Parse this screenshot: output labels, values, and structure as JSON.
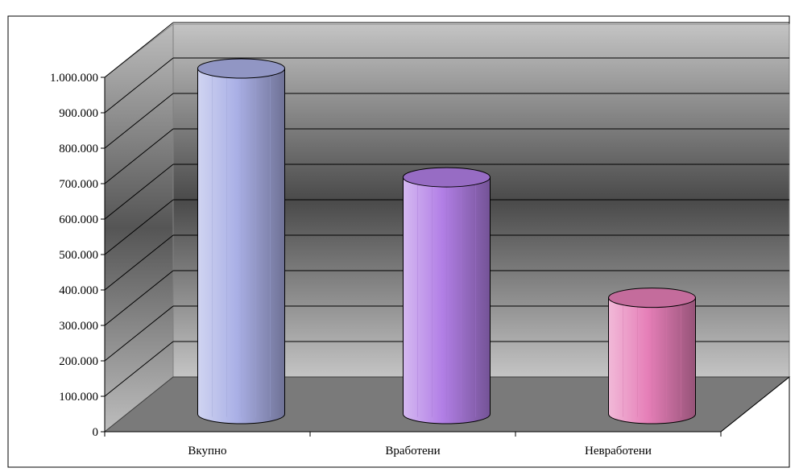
{
  "chart_data": {
    "type": "bar",
    "style": "3d-cylinder",
    "title": "",
    "categories": [
      "Вкупно",
      "Вработени",
      "Невработени"
    ],
    "values": [
      975000,
      668000,
      328000
    ],
    "bar_colors": [
      "#aab0e6",
      "#b27fe6",
      "#e67fb8"
    ],
    "ylim": [
      0,
      1000000
    ],
    "yticks": [
      0,
      100000,
      200000,
      300000,
      400000,
      500000,
      600000,
      700000,
      800000,
      900000,
      1000000
    ],
    "ytick_labels": [
      "0",
      "100.000",
      "200.000",
      "300.000",
      "400.000",
      "500.000",
      "600.000",
      "700.000",
      "800.000",
      "900.000",
      "1.000.000"
    ],
    "xlabel": "",
    "ylabel": "",
    "grid": true,
    "legend": "none"
  }
}
